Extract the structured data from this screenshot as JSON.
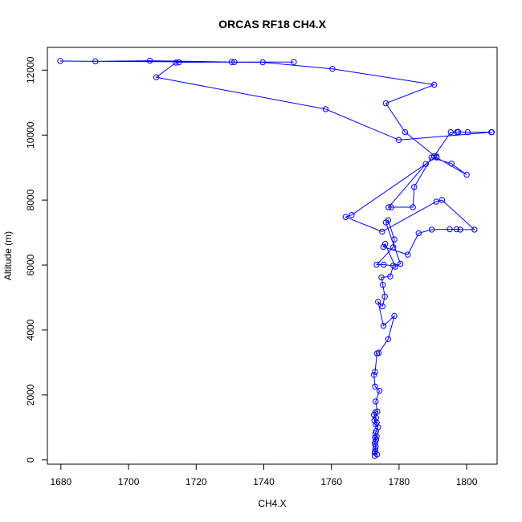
{
  "chart_data": {
    "type": "line",
    "title": "ORCAS RF18 CH4.X",
    "xlabel": "CH4.X",
    "ylabel": "Altitude (m)",
    "xlim": [
      1676,
      1809
    ],
    "ylim": [
      -130,
      12700
    ],
    "x_ticks": [
      1680,
      1700,
      1720,
      1740,
      1760,
      1780,
      1800
    ],
    "y_ticks": [
      0,
      2000,
      4000,
      6000,
      8000,
      10000,
      12000
    ],
    "grid": false,
    "legend": "none",
    "marker": "open-circle",
    "color": "#0000ff",
    "series": [
      {
        "points": [
          [
            1772.8,
            130
          ],
          [
            1773.5,
            170
          ],
          [
            1772.8,
            220
          ],
          [
            1772.9,
            260
          ],
          [
            1773.0,
            330
          ],
          [
            1773.1,
            420
          ],
          [
            1772.8,
            500
          ],
          [
            1773.0,
            560
          ],
          [
            1773.2,
            620
          ],
          [
            1772.9,
            690
          ],
          [
            1773.4,
            730
          ],
          [
            1773.0,
            820
          ],
          [
            1773.2,
            890
          ],
          [
            1773.8,
            1010
          ],
          [
            1773.1,
            1090
          ],
          [
            1773.4,
            1150
          ],
          [
            1772.7,
            1210
          ],
          [
            1773.2,
            1300
          ],
          [
            1772.6,
            1390
          ],
          [
            1773.0,
            1470
          ],
          [
            1773.6,
            1490
          ],
          [
            1773.1,
            1800
          ],
          [
            1774.2,
            2130
          ],
          [
            1772.9,
            2260
          ],
          [
            1772.6,
            2620
          ],
          [
            1772.9,
            2710
          ],
          [
            1773.5,
            3280
          ],
          [
            1774.0,
            3300
          ],
          [
            1776.8,
            3720
          ],
          [
            1778.6,
            4430
          ],
          [
            1775.4,
            4130
          ],
          [
            1773.8,
            4870
          ],
          [
            1775.1,
            4730
          ],
          [
            1775.8,
            5030
          ],
          [
            1775.2,
            5390
          ],
          [
            1774.8,
            5620
          ],
          [
            1777.4,
            5650
          ],
          [
            1778.3,
            5980
          ],
          [
            1775.5,
            6010
          ],
          [
            1773.4,
            6010
          ],
          [
            1778.3,
            6550
          ],
          [
            1778.6,
            6790
          ],
          [
            1776.8,
            7380
          ],
          [
            1776.1,
            7310
          ],
          [
            1780.4,
            6040
          ],
          [
            1778.9,
            5950
          ],
          [
            1775.9,
            6650
          ],
          [
            1775.4,
            6560
          ],
          [
            1782.6,
            6320
          ],
          [
            1785.8,
            6980
          ],
          [
            1789.7,
            7090
          ],
          [
            1795.0,
            7100
          ],
          [
            1797.0,
            7100
          ],
          [
            1798.1,
            7090
          ],
          [
            1802.3,
            7090
          ],
          [
            1792.7,
            8000
          ],
          [
            1791.0,
            7950
          ],
          [
            1775.0,
            7030
          ],
          [
            1764.2,
            7480
          ],
          [
            1766.0,
            7540
          ],
          [
            1791.1,
            9340
          ],
          [
            1787.9,
            9110
          ],
          [
            1776.9,
            7780
          ],
          [
            1777.7,
            7780
          ],
          [
            1784.1,
            7780
          ],
          [
            1784.5,
            8400
          ],
          [
            1789.6,
            9310
          ],
          [
            1795.5,
            9120
          ],
          [
            1800.0,
            8780
          ],
          [
            1790.4,
            9350
          ],
          [
            1795.3,
            10090
          ],
          [
            1797.1,
            10090
          ],
          [
            1797.5,
            10100
          ],
          [
            1800.3,
            10090
          ],
          [
            1807.3,
            10090
          ],
          [
            1807.4,
            10090
          ],
          [
            1779.9,
            9850
          ],
          [
            1758.3,
            10800
          ],
          [
            1708.2,
            11780
          ],
          [
            1714.0,
            12230
          ],
          [
            1714.9,
            12240
          ],
          [
            1730.5,
            12250
          ],
          [
            1748.9,
            12250
          ],
          [
            1731.3,
            12250
          ],
          [
            1706.3,
            12290
          ],
          [
            1690.2,
            12270
          ],
          [
            1679.8,
            12280
          ],
          [
            1739.7,
            12240
          ],
          [
            1760.3,
            12040
          ],
          [
            1790.4,
            11550
          ],
          [
            1776.1,
            10980
          ],
          [
            1781.8,
            10090
          ],
          [
            1791.1,
            9310
          ]
        ]
      }
    ]
  }
}
